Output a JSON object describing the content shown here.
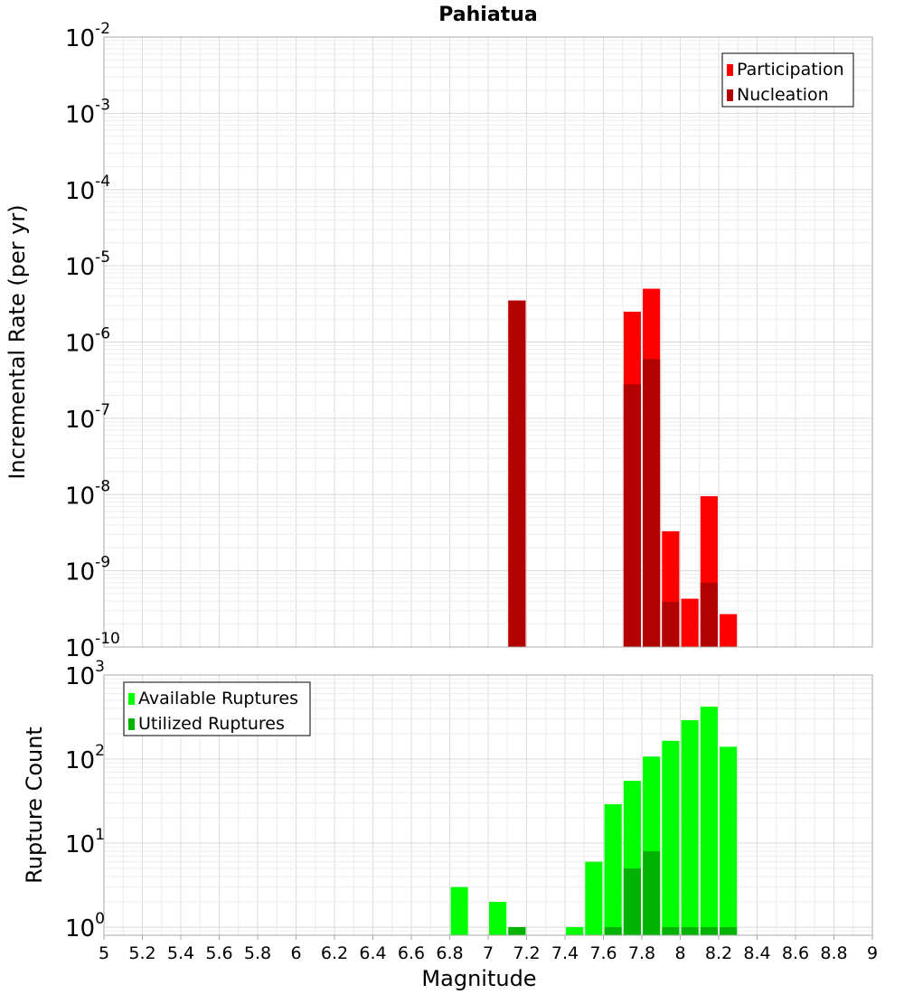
{
  "chart_data": [
    {
      "type": "bar",
      "title": "Pahiatua",
      "xlabel": "",
      "ylabel": "Incremental Rate (per yr)",
      "yscale": "log",
      "ylim": [
        1e-10,
        0.01
      ],
      "xlim": [
        5,
        9
      ],
      "y_ticks": [
        {
          "base": "10",
          "exp": "-10"
        },
        {
          "base": "10",
          "exp": "-9"
        },
        {
          "base": "10",
          "exp": "-8"
        },
        {
          "base": "10",
          "exp": "-7"
        },
        {
          "base": "10",
          "exp": "-6"
        },
        {
          "base": "10",
          "exp": "-5"
        },
        {
          "base": "10",
          "exp": "-4"
        },
        {
          "base": "10",
          "exp": "-3"
        },
        {
          "base": "10",
          "exp": "-2"
        }
      ],
      "grid": true,
      "legend_position": "top-right",
      "series": [
        {
          "name": "Participation",
          "color": "#ff0000",
          "points": [
            {
              "x": 7.15,
              "y": 3.5e-06
            },
            {
              "x": 7.75,
              "y": 2.5e-06
            },
            {
              "x": 7.85,
              "y": 5e-06
            },
            {
              "x": 7.95,
              "y": 3.3e-09
            },
            {
              "x": 8.05,
              "y": 4.3e-10
            },
            {
              "x": 8.15,
              "y": 9.5e-09
            },
            {
              "x": 8.25,
              "y": 2.7e-10
            }
          ]
        },
        {
          "name": "Nucleation",
          "color": "#b30000",
          "points": [
            {
              "x": 7.15,
              "y": 3.5e-06
            },
            {
              "x": 7.75,
              "y": 2.8e-07
            },
            {
              "x": 7.85,
              "y": 6e-07
            },
            {
              "x": 7.95,
              "y": 3.9e-10
            },
            {
              "x": 8.15,
              "y": 7e-10
            }
          ]
        }
      ]
    },
    {
      "type": "bar",
      "title": "",
      "xlabel": "Magnitude",
      "ylabel": "Rupture Count",
      "yscale": "log",
      "ylim": [
        0.8,
        1000
      ],
      "xlim": [
        5,
        9
      ],
      "x_ticks": [
        "5",
        "5.2",
        "5.4",
        "5.6",
        "5.8",
        "6",
        "6.2",
        "6.4",
        "6.6",
        "6.8",
        "7",
        "7.2",
        "7.4",
        "7.6",
        "7.8",
        "8",
        "8.2",
        "8.4",
        "8.6",
        "8.8",
        "9"
      ],
      "y_ticks": [
        {
          "base": "10",
          "exp": "0"
        },
        {
          "base": "10",
          "exp": "1"
        },
        {
          "base": "10",
          "exp": "2"
        },
        {
          "base": "10",
          "exp": "3"
        }
      ],
      "grid": true,
      "legend_position": "top-left",
      "series": [
        {
          "name": "Available Ruptures",
          "color": "#00ff00",
          "points": [
            {
              "x": 6.85,
              "y": 3
            },
            {
              "x": 7.05,
              "y": 2
            },
            {
              "x": 7.15,
              "y": 1
            },
            {
              "x": 7.45,
              "y": 1
            },
            {
              "x": 7.55,
              "y": 6
            },
            {
              "x": 7.65,
              "y": 29
            },
            {
              "x": 7.75,
              "y": 55
            },
            {
              "x": 7.85,
              "y": 107
            },
            {
              "x": 7.95,
              "y": 165
            },
            {
              "x": 8.05,
              "y": 290
            },
            {
              "x": 8.15,
              "y": 420
            },
            {
              "x": 8.25,
              "y": 140
            }
          ]
        },
        {
          "name": "Utilized Ruptures",
          "color": "#00b300",
          "points": [
            {
              "x": 7.15,
              "y": 1
            },
            {
              "x": 7.65,
              "y": 1
            },
            {
              "x": 7.75,
              "y": 5
            },
            {
              "x": 7.85,
              "y": 8
            },
            {
              "x": 7.95,
              "y": 1
            },
            {
              "x": 8.05,
              "y": 1
            },
            {
              "x": 8.15,
              "y": 1
            },
            {
              "x": 8.25,
              "y": 1
            }
          ]
        }
      ]
    }
  ]
}
